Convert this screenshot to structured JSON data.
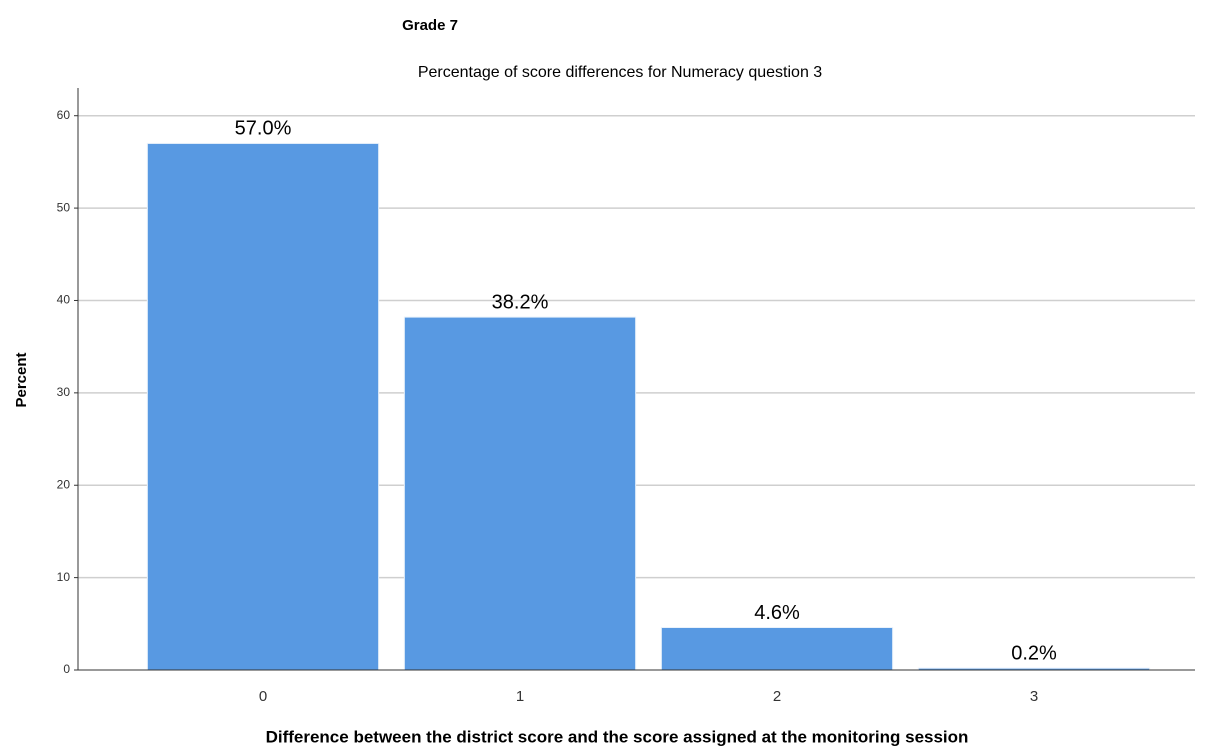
{
  "chart_data": {
    "type": "bar",
    "heading": "Grade 7",
    "title": "Percentage of score differences for Numeracy question 3",
    "x_label": "Difference between the district score and the score assigned at the monitoring session",
    "y_label": "Percent",
    "categories": [
      "0",
      "1",
      "2",
      "3"
    ],
    "values": [
      57.0,
      38.2,
      4.6,
      0.2
    ],
    "value_labels": [
      "57.0%",
      "38.2%",
      "4.6%",
      "0.2%"
    ],
    "color": "#5899e2",
    "ylim": [
      0,
      63
    ],
    "yticks": [
      0,
      10,
      20,
      30,
      40,
      50,
      60
    ],
    "grid": true
  }
}
